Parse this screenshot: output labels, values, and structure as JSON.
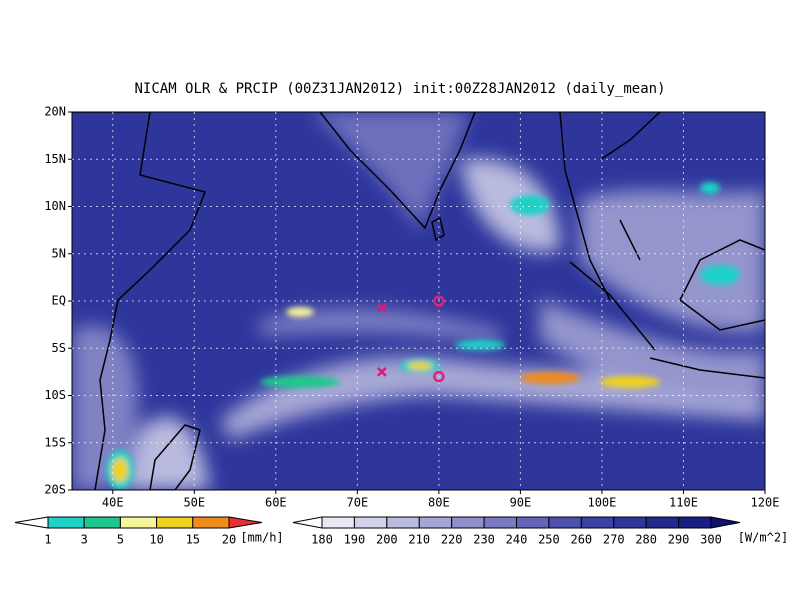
{
  "chart_data": {
    "type": "map",
    "title": "NICAM OLR & PRCIP (00Z31JAN2012) init:00Z28JAN2012 (daily_mean)",
    "xlim": [
      35,
      120
    ],
    "ylim": [
      -20,
      20
    ],
    "xticks": [
      {
        "value": 40,
        "label": "40E"
      },
      {
        "value": 50,
        "label": "50E"
      },
      {
        "value": 60,
        "label": "60E"
      },
      {
        "value": 70,
        "label": "70E"
      },
      {
        "value": 80,
        "label": "80E"
      },
      {
        "value": 90,
        "label": "90E"
      },
      {
        "value": 100,
        "label": "100E"
      },
      {
        "value": 110,
        "label": "110E"
      },
      {
        "value": 120,
        "label": "120E"
      }
    ],
    "yticks": [
      {
        "value": 20,
        "label": "20N"
      },
      {
        "value": 15,
        "label": "15N"
      },
      {
        "value": 10,
        "label": "10N"
      },
      {
        "value": 5,
        "label": "5N"
      },
      {
        "value": 0,
        "label": "EQ"
      },
      {
        "value": -5,
        "label": "5S"
      },
      {
        "value": -10,
        "label": "10S"
      },
      {
        "value": -15,
        "label": "15S"
      },
      {
        "value": -20,
        "label": "20S"
      }
    ],
    "grid": true,
    "x_markers": {
      "lon": [
        73,
        73
      ],
      "lat": [
        -0.7,
        -7.5
      ],
      "color": "#d81b7a"
    },
    "o_markers": {
      "lon": [
        80,
        80
      ],
      "lat": [
        0,
        -8
      ],
      "color": "#e0207a"
    },
    "precip_bar": {
      "levels": [
        1,
        3,
        5,
        10,
        15,
        20
      ],
      "unit": "[mm/h]",
      "colors": [
        "#ffffff",
        "#1ed2c8",
        "#1ec88c",
        "#f5f59b",
        "#f0d21e",
        "#f08c1e",
        "#e63232"
      ]
    },
    "olr_bar": {
      "levels": [
        180,
        190,
        200,
        210,
        220,
        230,
        240,
        250,
        260,
        270,
        280,
        290,
        300
      ],
      "unit": "[W/m^2]",
      "colors": [
        "#ffffff",
        "#e8e8f4",
        "#d2d2ea",
        "#bcbce0",
        "#a6a6d6",
        "#9090cc",
        "#7a7ac2",
        "#6464b8",
        "#4e52ae",
        "#3c42a4",
        "#2e369c",
        "#222a90",
        "#181e84",
        "#0e1270"
      ]
    }
  }
}
